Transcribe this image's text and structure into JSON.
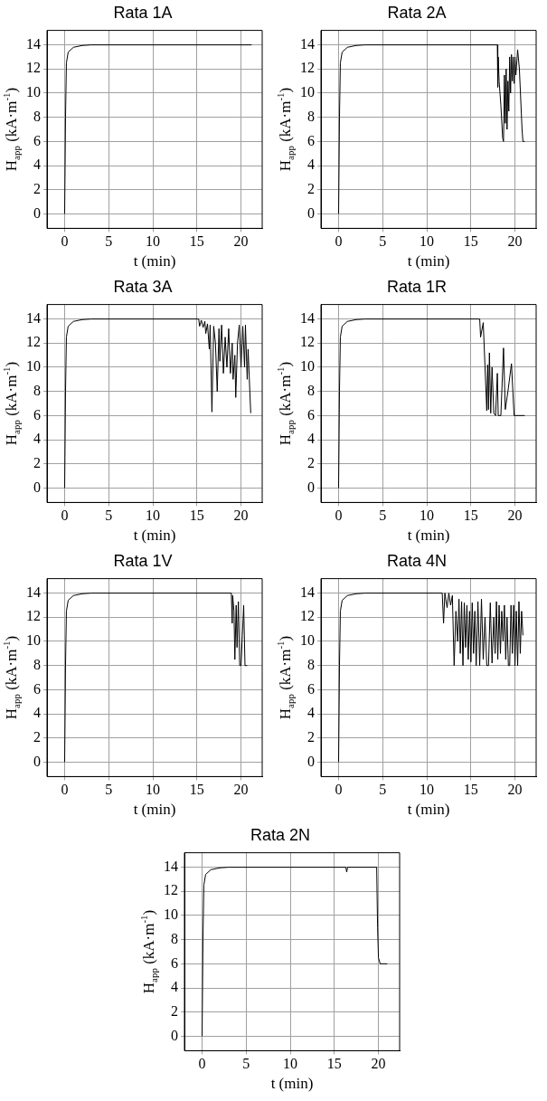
{
  "chart_data": [
    {
      "type": "line",
      "title": "Rata 1A",
      "xlabel": "t (min)",
      "ylabel": "H$_{app}$ (kA·m$^{-1}$)",
      "color": "#000000",
      "marker": "none",
      "grid": true,
      "xlim": [
        -2,
        22.4
      ],
      "ylim": [
        -1.2,
        15.2
      ],
      "xticks": [
        0,
        5,
        10,
        15,
        20
      ],
      "yticks": [
        0,
        2,
        4,
        6,
        8,
        10,
        12,
        14
      ],
      "x": [
        0,
        0.1,
        0.2,
        0.4,
        1,
        2,
        3,
        21.2
      ],
      "values": [
        0,
        8,
        12.5,
        13.4,
        13.8,
        13.95,
        14,
        14
      ]
    },
    {
      "type": "line",
      "title": "Rata 2A",
      "xlabel": "t (min)",
      "ylabel": "H$_{app}$ (kA·m$^{-1}$)",
      "color": "#000000",
      "marker": "none",
      "grid": true,
      "xlim": [
        -2,
        22.4
      ],
      "ylim": [
        -1.2,
        15.2
      ],
      "xticks": [
        0,
        5,
        10,
        15,
        20
      ],
      "yticks": [
        0,
        2,
        4,
        6,
        8,
        10,
        12,
        14
      ],
      "x": [
        0,
        0.1,
        0.2,
        0.4,
        1,
        2,
        3,
        18.0,
        18.05,
        18.1,
        18.2,
        18.4,
        18.6,
        18.7,
        18.8,
        18.9,
        19.0,
        19.1,
        19.2,
        19.3,
        19.4,
        19.5,
        19.6,
        19.7,
        19.8,
        19.9,
        20.0,
        20.1,
        20.3,
        20.5,
        20.8,
        20.9,
        21.1
      ],
      "values": [
        0,
        8,
        12.5,
        13.4,
        13.8,
        13.95,
        14,
        14,
        10.5,
        13,
        11,
        9,
        6.3,
        6,
        11.5,
        7.5,
        12,
        7,
        11,
        8.5,
        13,
        10,
        13.2,
        11,
        13,
        10.8,
        13,
        11.5,
        13.6,
        12,
        7,
        6,
        6
      ]
    },
    {
      "type": "line",
      "title": "Rata 3A",
      "xlabel": "t (min)",
      "ylabel": "H$_{app}$ (kA·m$^{-1}$)",
      "color": "#000000",
      "marker": "none",
      "grid": true,
      "xlim": [
        -2,
        22.4
      ],
      "ylim": [
        -1.2,
        15.2
      ],
      "xticks": [
        0,
        5,
        10,
        15,
        20
      ],
      "yticks": [
        0,
        2,
        4,
        6,
        8,
        10,
        12,
        14
      ],
      "x": [
        0,
        0.1,
        0.2,
        0.4,
        1,
        2,
        3,
        15.2,
        15.3,
        15.5,
        15.7,
        15.9,
        16.0,
        16.2,
        16.4,
        16.5,
        16.7,
        16.9,
        17.1,
        17.3,
        17.5,
        17.6,
        17.8,
        18.0,
        18.2,
        18.4,
        18.6,
        18.8,
        19.0,
        19.1,
        19.3,
        19.4,
        19.6,
        19.8,
        20.0,
        20.2,
        20.4,
        20.5,
        20.7,
        20.8,
        21.1
      ],
      "values": [
        0,
        8,
        12.5,
        13.4,
        13.8,
        13.95,
        14,
        14,
        13.4,
        13.9,
        13.3,
        13.8,
        12.8,
        13.6,
        11.5,
        13.5,
        6.3,
        13.4,
        12,
        8,
        13.2,
        10.5,
        13.5,
        9.5,
        12.5,
        10,
        13.2,
        9.5,
        12,
        9,
        11,
        7.5,
        12,
        13.5,
        10,
        13.4,
        10,
        13.5,
        9,
        11.5,
        6.2
      ]
    },
    {
      "type": "line",
      "title": "Rata 1R",
      "xlabel": "t (min)",
      "ylabel": "H$_{app}$ (kA·m$^{-1}$)",
      "color": "#000000",
      "marker": "none",
      "grid": true,
      "xlim": [
        -2,
        22.4
      ],
      "ylim": [
        -1.2,
        15.2
      ],
      "xticks": [
        0,
        5,
        10,
        15,
        20
      ],
      "yticks": [
        0,
        2,
        4,
        6,
        8,
        10,
        12,
        14
      ],
      "x": [
        0,
        0.1,
        0.2,
        0.4,
        1,
        2,
        3,
        16.0,
        16.1,
        16.4,
        16.8,
        16.9,
        17.0,
        17.1,
        17.25,
        17.4,
        17.6,
        17.8,
        18.0,
        18.1,
        18.4,
        18.7,
        18.9,
        19.2,
        19.6,
        19.9,
        21.1
      ],
      "values": [
        0,
        8,
        12.5,
        13.4,
        13.8,
        13.95,
        14,
        14,
        12.5,
        13.7,
        6.4,
        10.2,
        6.5,
        11.2,
        6.2,
        10,
        6.2,
        6,
        9.5,
        6,
        6,
        11.6,
        6.5,
        8,
        10.3,
        6,
        6
      ]
    },
    {
      "type": "line",
      "title": "Rata 1V",
      "xlabel": "t (min)",
      "ylabel": "H$_{app}$ (kA·m$^{-1}$)",
      "color": "#000000",
      "marker": "none",
      "grid": true,
      "xlim": [
        -2,
        22.4
      ],
      "ylim": [
        -1.2,
        15.2
      ],
      "xticks": [
        0,
        5,
        10,
        15,
        20
      ],
      "yticks": [
        0,
        2,
        4,
        6,
        8,
        10,
        12,
        14
      ],
      "x": [
        0,
        0.1,
        0.2,
        0.4,
        1,
        2,
        3,
        18.9,
        19.0,
        19.05,
        19.2,
        19.3,
        19.45,
        19.55,
        19.7,
        19.85,
        20.0,
        20.15,
        20.3,
        20.45,
        20.7
      ],
      "values": [
        0,
        8,
        12.5,
        13.4,
        13.8,
        13.95,
        14,
        14,
        11.5,
        13.8,
        12.5,
        8.5,
        13,
        9.5,
        13.3,
        8,
        8,
        10.5,
        13,
        8,
        8
      ]
    },
    {
      "type": "line",
      "title": "Rata 4N",
      "xlabel": "t (min)",
      "ylabel": "H$_{app}$ (kA·m$^{-1}$)",
      "color": "#000000",
      "marker": "none",
      "grid": true,
      "xlim": [
        -2,
        22.4
      ],
      "ylim": [
        -1.2,
        15.2
      ],
      "xticks": [
        0,
        5,
        10,
        15,
        20
      ],
      "yticks": [
        0,
        2,
        4,
        6,
        8,
        10,
        12,
        14
      ],
      "x": [
        0,
        0.1,
        0.2,
        0.4,
        1,
        2,
        3,
        11.75,
        11.9,
        12.05,
        12.3,
        12.5,
        12.7,
        12.9,
        13.1,
        13.3,
        13.5,
        13.65,
        13.8,
        13.95,
        14.1,
        14.25,
        14.4,
        14.55,
        14.7,
        14.85,
        15.0,
        15.15,
        15.3,
        15.45,
        15.6,
        15.8,
        16.0,
        16.2,
        16.4,
        16.6,
        16.8,
        17.0,
        17.2,
        17.4,
        17.6,
        17.75,
        17.9,
        18.05,
        18.2,
        18.35,
        18.5,
        18.65,
        18.8,
        18.95,
        19.1,
        19.25,
        19.4,
        19.55,
        19.7,
        19.85,
        20.0,
        20.15,
        20.3,
        20.45,
        20.6,
        20.75,
        20.9
      ],
      "values": [
        0,
        8,
        12.5,
        13.4,
        13.8,
        13.95,
        14,
        14,
        11.5,
        14,
        12.8,
        14,
        13,
        13.8,
        8,
        12.5,
        10,
        13.5,
        9,
        13.3,
        8,
        13.2,
        9.5,
        13,
        8.5,
        12.5,
        8.3,
        13.2,
        9,
        12.5,
        8,
        13.3,
        8,
        13.5,
        8.5,
        12,
        8,
        8,
        13.2,
        8.2,
        12,
        9,
        13.3,
        8.5,
        13,
        9,
        12.5,
        10,
        13,
        8.5,
        12,
        8,
        8,
        13,
        9,
        13,
        8,
        12.5,
        8,
        13.3,
        9,
        12.5,
        10.5
      ]
    },
    {
      "type": "line",
      "title": "Rata 2N",
      "xlabel": "t (min)",
      "ylabel": "H$_{app}$ (kA·m$^{-1}$)",
      "color": "#000000",
      "marker": "none",
      "grid": true,
      "xlim": [
        -2,
        22.4
      ],
      "ylim": [
        -1.2,
        15.2
      ],
      "xticks": [
        0,
        5,
        10,
        15,
        20
      ],
      "yticks": [
        0,
        2,
        4,
        6,
        8,
        10,
        12,
        14
      ],
      "x": [
        0,
        0.1,
        0.2,
        0.4,
        1,
        2,
        3,
        16.3,
        16.4,
        16.5,
        19.8,
        19.9,
        20.0,
        20.2,
        21.0
      ],
      "values": [
        0,
        8,
        12.5,
        13.4,
        13.8,
        13.95,
        14,
        14,
        13.6,
        14,
        14,
        9,
        6.5,
        6,
        6
      ]
    }
  ]
}
